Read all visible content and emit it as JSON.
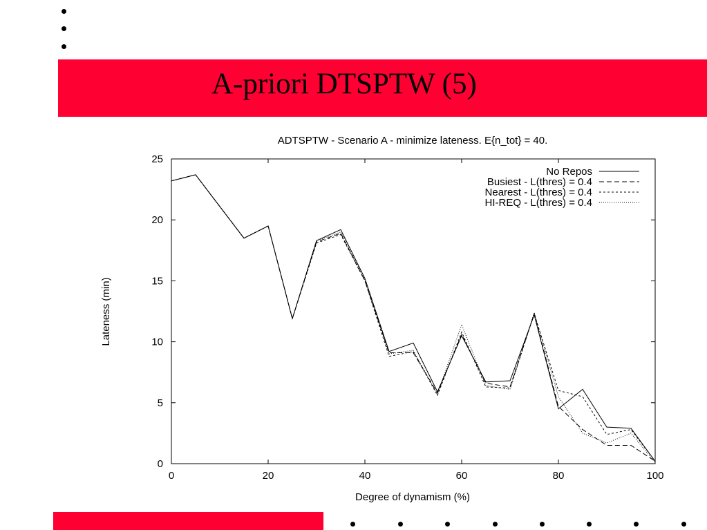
{
  "slide": {
    "title": "A-priori DTSPTW (5)",
    "accent_color": "#ff0033"
  },
  "chart_data": {
    "type": "line",
    "title": "ADTSPTW - Scenario A - minimize lateness. E{n_tot} = 40.",
    "xlabel": "Degree of dynamism (%)",
    "ylabel": "Lateness (min)",
    "xlim": [
      0,
      100
    ],
    "ylim": [
      0,
      25
    ],
    "xticks": [
      0,
      20,
      40,
      60,
      80,
      100
    ],
    "yticks": [
      0,
      5,
      10,
      15,
      20,
      25
    ],
    "grid": false,
    "legend_position": "top-right",
    "series": [
      {
        "name": "No Repos",
        "dash": "solid",
        "x": [
          0,
          5,
          10,
          15,
          20,
          25,
          30,
          35,
          40,
          45,
          50,
          55,
          60,
          65,
          70,
          75,
          80,
          85,
          90,
          95,
          100
        ],
        "values": [
          23.2,
          23.7,
          21.1,
          18.5,
          19.5,
          11.9,
          18.3,
          19.2,
          15.2,
          9.2,
          9.9,
          5.9,
          10.5,
          6.7,
          6.8,
          12.2,
          4.5,
          6.1,
          3.0,
          2.9,
          0.2
        ]
      },
      {
        "name": "Busiest - L(thres) = 0.4",
        "dash": "long-dash",
        "x": [
          0,
          5,
          10,
          15,
          20,
          25,
          30,
          35,
          40,
          45,
          50,
          55,
          60,
          65,
          70,
          75,
          80,
          85,
          90,
          95,
          100
        ],
        "values": [
          23.2,
          23.7,
          21.1,
          18.5,
          19.5,
          11.9,
          18.2,
          18.9,
          15.0,
          9.1,
          9.1,
          5.8,
          10.6,
          6.6,
          6.3,
          12.3,
          4.7,
          2.8,
          1.5,
          1.5,
          0.2
        ]
      },
      {
        "name": "Nearest - L(thres) = 0.4",
        "dash": "short-dash",
        "x": [
          0,
          5,
          10,
          15,
          20,
          25,
          30,
          35,
          40,
          45,
          50,
          55,
          60,
          65,
          70,
          75,
          80,
          85,
          90,
          95,
          100
        ],
        "values": [
          23.2,
          23.7,
          21.1,
          18.5,
          19.5,
          11.9,
          18.1,
          18.8,
          15.0,
          8.8,
          9.2,
          5.6,
          10.8,
          6.3,
          6.2,
          12.3,
          6.0,
          5.5,
          2.4,
          2.8,
          0.2
        ]
      },
      {
        "name": "HI-REQ - L(thres) = 0.4",
        "dash": "dotted",
        "x": [
          0,
          5,
          10,
          15,
          20,
          25,
          30,
          35,
          40,
          45,
          50,
          55,
          60,
          65,
          70,
          75,
          80,
          85,
          90,
          95,
          100
        ],
        "values": [
          23.2,
          23.7,
          21.1,
          18.5,
          19.5,
          11.9,
          18.3,
          19.0,
          15.1,
          9.0,
          9.3,
          5.7,
          11.4,
          6.4,
          6.1,
          12.4,
          5.5,
          2.5,
          1.7,
          2.5,
          0.1
        ]
      }
    ]
  }
}
